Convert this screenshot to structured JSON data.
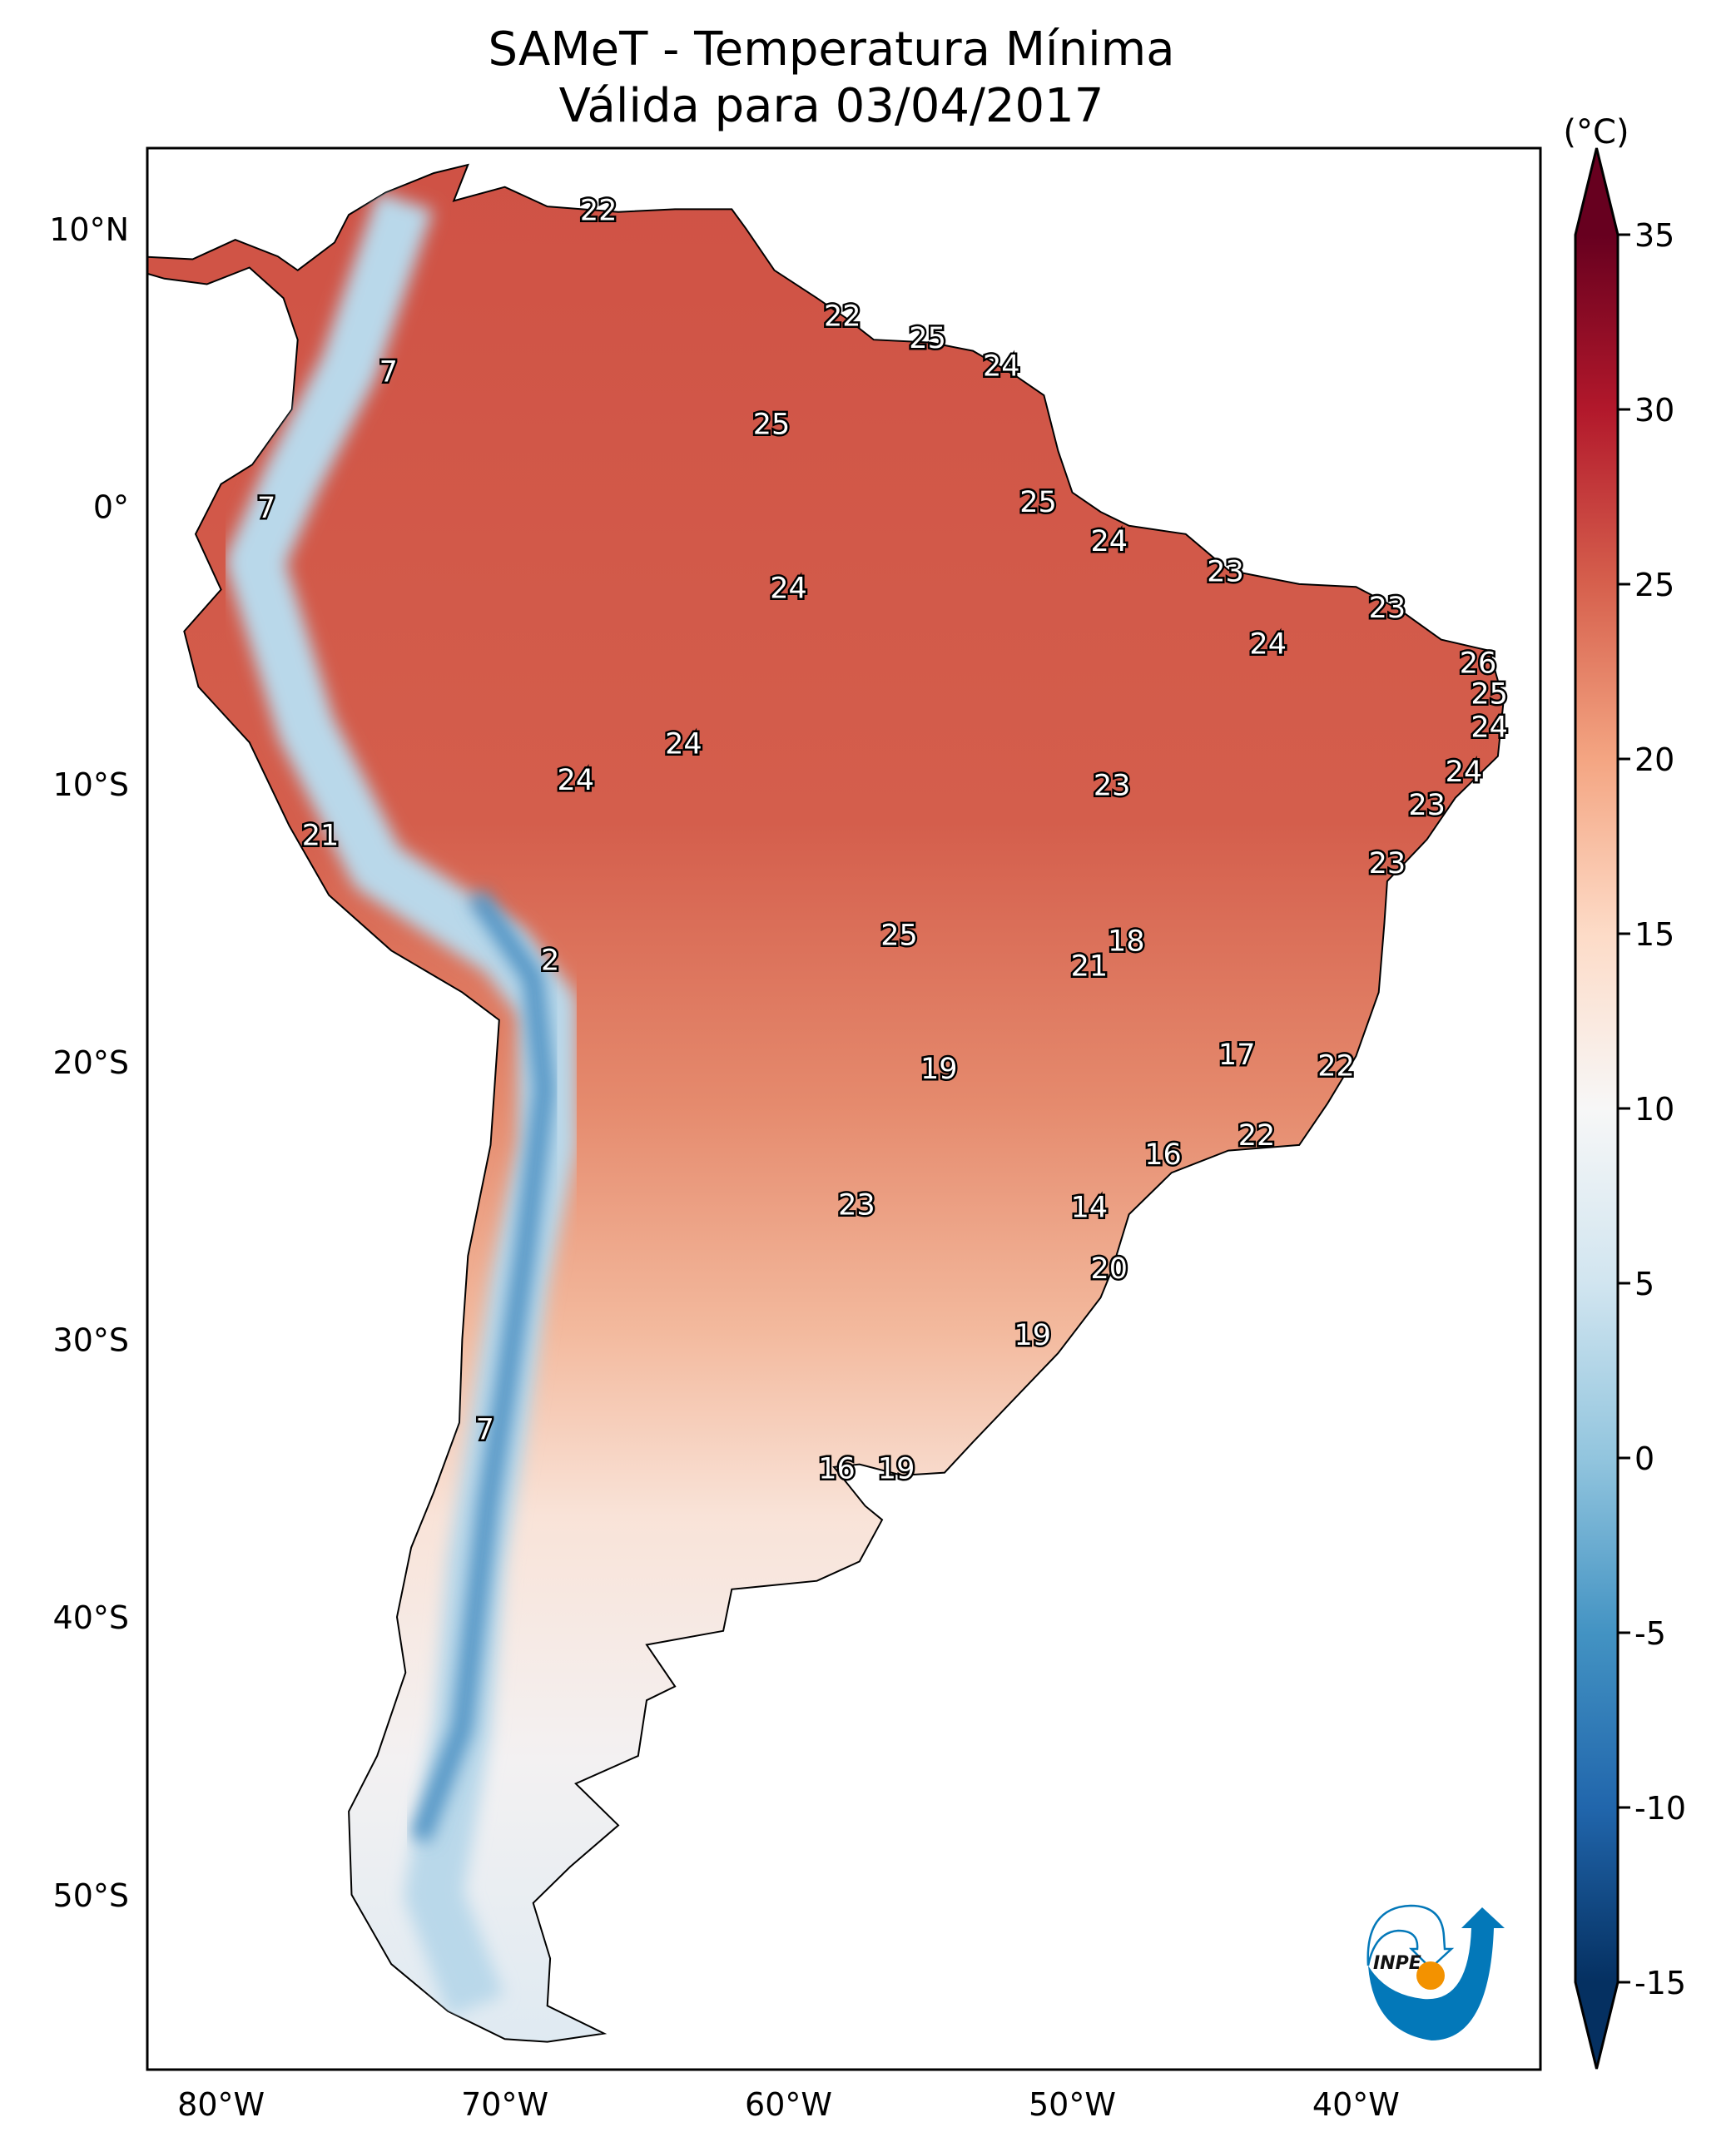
{
  "title": {
    "line1": "SAMeT - Temperatura Mínima",
    "line2": "Válida para 03/04/2017"
  },
  "map": {
    "projection": "PlateCarree",
    "extent": {
      "lon": [
        -82.6,
        -33.5
      ],
      "lat": [
        -56.3,
        12.9
      ]
    },
    "x_ticks": [
      {
        "lon": -80,
        "label": "80°W"
      },
      {
        "lon": -70,
        "label": "70°W"
      },
      {
        "lon": -60,
        "label": "60°W"
      },
      {
        "lon": -50,
        "label": "50°W"
      },
      {
        "lon": -40,
        "label": "40°W"
      }
    ],
    "y_ticks": [
      {
        "lat": 10,
        "label": "10°N"
      },
      {
        "lat": 0,
        "label": "0°"
      },
      {
        "lat": -10,
        "label": "10°S"
      },
      {
        "lat": -20,
        "label": "20°S"
      },
      {
        "lat": -30,
        "label": "30°S"
      },
      {
        "lat": -40,
        "label": "40°S"
      },
      {
        "lat": -50,
        "label": "50°S"
      }
    ],
    "station_values": [
      {
        "value": "22",
        "lon": -66.7,
        "lat": 10.6
      },
      {
        "value": "7",
        "lon": -74.1,
        "lat": 4.8
      },
      {
        "value": "22",
        "lon": -58.1,
        "lat": 6.8
      },
      {
        "value": "25",
        "lon": -55.1,
        "lat": 6.0
      },
      {
        "value": "24",
        "lon": -52.5,
        "lat": 5.0
      },
      {
        "value": "25",
        "lon": -60.6,
        "lat": 2.9
      },
      {
        "value": "7",
        "lon": -78.4,
        "lat": -0.1
      },
      {
        "value": "25",
        "lon": -51.2,
        "lat": 0.1
      },
      {
        "value": "24",
        "lon": -48.7,
        "lat": -1.3
      },
      {
        "value": "23",
        "lon": -44.6,
        "lat": -2.4
      },
      {
        "value": "24",
        "lon": -60.0,
        "lat": -3.0
      },
      {
        "value": "23",
        "lon": -38.9,
        "lat": -3.7
      },
      {
        "value": "24",
        "lon": -43.1,
        "lat": -5.0
      },
      {
        "value": "26",
        "lon": -35.7,
        "lat": -5.7
      },
      {
        "value": "25",
        "lon": -35.3,
        "lat": -6.8
      },
      {
        "value": "24",
        "lon": -35.3,
        "lat": -8.0
      },
      {
        "value": "24",
        "lon": -63.7,
        "lat": -8.6
      },
      {
        "value": "24",
        "lon": -67.5,
        "lat": -9.9
      },
      {
        "value": "24",
        "lon": -36.2,
        "lat": -9.6
      },
      {
        "value": "23",
        "lon": -48.6,
        "lat": -10.1
      },
      {
        "value": "23",
        "lon": -37.5,
        "lat": -10.8
      },
      {
        "value": "21",
        "lon": -76.5,
        "lat": -11.9
      },
      {
        "value": "23",
        "lon": -38.9,
        "lat": -12.9
      },
      {
        "value": "25",
        "lon": -56.1,
        "lat": -15.5
      },
      {
        "value": "18",
        "lon": -48.1,
        "lat": -15.7
      },
      {
        "value": "2",
        "lon": -68.4,
        "lat": -16.4
      },
      {
        "value": "21",
        "lon": -49.4,
        "lat": -16.6
      },
      {
        "value": "17",
        "lon": -44.2,
        "lat": -19.8
      },
      {
        "value": "19",
        "lon": -54.7,
        "lat": -20.3
      },
      {
        "value": "22",
        "lon": -40.7,
        "lat": -20.2
      },
      {
        "value": "22",
        "lon": -43.5,
        "lat": -22.7
      },
      {
        "value": "16",
        "lon": -46.8,
        "lat": -23.4
      },
      {
        "value": "14",
        "lon": -49.4,
        "lat": -25.3
      },
      {
        "value": "23",
        "lon": -57.6,
        "lat": -25.2
      },
      {
        "value": "20",
        "lon": -48.7,
        "lat": -27.5
      },
      {
        "value": "19",
        "lon": -51.4,
        "lat": -29.9
      },
      {
        "value": "7",
        "lon": -70.7,
        "lat": -33.3
      },
      {
        "value": "16",
        "lon": -58.3,
        "lat": -34.7
      },
      {
        "value": "19",
        "lon": -56.2,
        "lat": -34.7
      }
    ]
  },
  "colorbar": {
    "unit": "(°C)",
    "range": [
      -15,
      35
    ],
    "extend": "both",
    "ticks": [
      "35",
      "30",
      "25",
      "20",
      "15",
      "10",
      "5",
      "0",
      "-5",
      "-10",
      "-15"
    ],
    "colormap": [
      {
        "v": -15,
        "c": "#053061"
      },
      {
        "v": -10,
        "c": "#2166ac"
      },
      {
        "v": -5,
        "c": "#4393c3"
      },
      {
        "v": 0,
        "c": "#92c5de"
      },
      {
        "v": 5,
        "c": "#d1e5f0"
      },
      {
        "v": 10,
        "c": "#f7f7f7"
      },
      {
        "v": 15,
        "c": "#fddbc7"
      },
      {
        "v": 20,
        "c": "#f4a582"
      },
      {
        "v": 25,
        "c": "#d6604d"
      },
      {
        "v": 30,
        "c": "#b2182b"
      },
      {
        "v": 35,
        "c": "#67001f"
      }
    ]
  },
  "logo": {
    "text": "INPE",
    "blue": "#0378b9",
    "orange": "#f39200"
  }
}
